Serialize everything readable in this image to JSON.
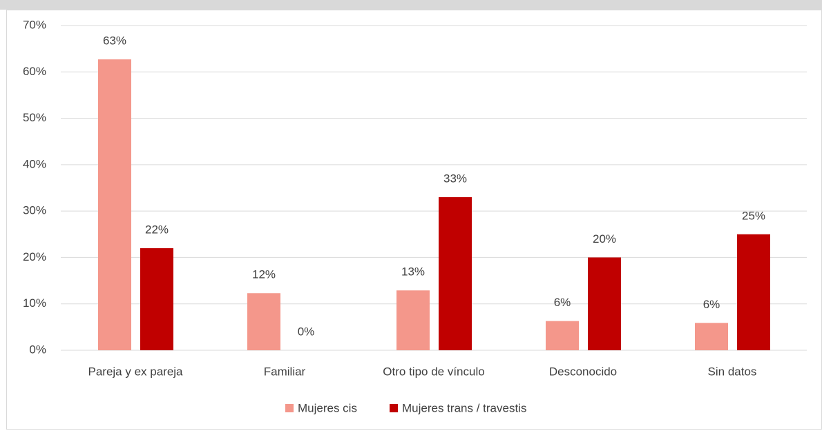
{
  "chart_data": {
    "type": "bar",
    "categories": [
      "Pareja y ex pareja",
      "Familiar",
      "Otro tipo de vínculo",
      "Desconocido",
      "Sin datos"
    ],
    "series": [
      {
        "name": "Mujeres cis",
        "color": "#f4978b",
        "values": [
          62.7,
          12.3,
          12.9,
          6.3,
          5.9
        ],
        "value_labels": [
          "63%",
          "12%",
          "13%",
          "6%",
          "6%"
        ]
      },
      {
        "name": "Mujeres trans / travestis",
        "color": "#c00000",
        "values": [
          22,
          0,
          33,
          20,
          25
        ],
        "value_labels": [
          "22%",
          "0%",
          "33%",
          "20%",
          "25%"
        ]
      }
    ],
    "ylim": [
      0,
      70
    ],
    "yticks": [
      {
        "value": 0,
        "label": "0%"
      },
      {
        "value": 10,
        "label": "10%"
      },
      {
        "value": 20,
        "label": "20%"
      },
      {
        "value": 30,
        "label": "30%"
      },
      {
        "value": 40,
        "label": "40%"
      },
      {
        "value": 50,
        "label": "50%"
      },
      {
        "value": 60,
        "label": "60%"
      },
      {
        "value": 70,
        "label": "70%"
      }
    ],
    "grid": true,
    "legend": "bottom"
  }
}
